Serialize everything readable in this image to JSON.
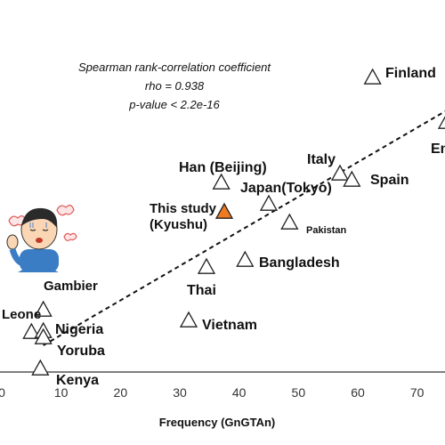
{
  "chart_data": {
    "type": "scatter",
    "xlabel": "Frequency (GnGTAn)",
    "xlim": [
      0,
      75
    ],
    "xticks": [
      "0",
      "10",
      "20",
      "30",
      "40",
      "50",
      "60",
      "70"
    ],
    "annotation": [
      "Spearman rank-correlation coefficient",
      "rho = 0.938",
      "p-value < 2.2e-16"
    ],
    "trendline": {
      "style": "dashed",
      "x": [
        7,
        75
      ]
    },
    "highlight_color": "#ee7a22",
    "highlight_label_color": "#5a8a2a",
    "points": [
      {
        "label": "Finland",
        "x": 62.5
      },
      {
        "label": "En",
        "x": 75
      },
      {
        "label": "Italy",
        "x": 57
      },
      {
        "label": "Spain",
        "x": 59
      },
      {
        "label": "Han (Beijing)",
        "x": 37
      },
      {
        "label": "Japan(Tokyo)",
        "x": 45
      },
      {
        "label": "This study (Kyushu)",
        "x": 37.5,
        "highlight": true
      },
      {
        "label": "Pakistan",
        "x": 48.5
      },
      {
        "label": "Bangladesh",
        "x": 41
      },
      {
        "label": "Thai",
        "x": 34.5
      },
      {
        "label": "Vietnam",
        "x": 31.5
      },
      {
        "label": "Gambier",
        "x": 7
      },
      {
        "label": "Leone",
        "x": 5
      },
      {
        "label": "Nigeria",
        "x": 7
      },
      {
        "label": "Yoruba",
        "x": 7
      },
      {
        "label": "Kenya",
        "x": 6.5
      }
    ]
  }
}
